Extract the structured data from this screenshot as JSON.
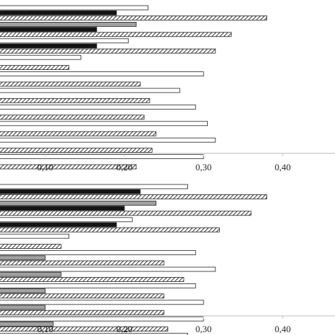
{
  "chart_data": [
    {
      "type": "bar",
      "orientation": "horizontal",
      "xlim": [
        0,
        0.45
      ],
      "xticks": [
        "0,10",
        "0,20",
        "0,30",
        "0,40"
      ],
      "xtick_values": [
        0.1,
        0.2,
        0.3,
        0.4
      ],
      "grid": false,
      "groups": [
        {
          "bars": [
            {
              "fill": "white",
              "value": 0.23
            },
            {
              "fill": "black",
              "value": 0.19
            },
            {
              "fill": "hatch",
              "value": 0.38
            }
          ]
        },
        {
          "bars": [
            {
              "fill": "gray",
              "value": 0.215
            },
            {
              "fill": "black",
              "value": 0.165
            },
            {
              "fill": "hatch",
              "value": 0.335
            }
          ]
        },
        {
          "bars": [
            {
              "fill": "white",
              "value": 0.205
            },
            {
              "fill": "black",
              "value": 0.165
            },
            {
              "fill": "hatch",
              "value": 0.315
            }
          ]
        },
        {
          "bars": [
            {
              "fill": "white",
              "value": 0.145
            },
            {
              "fill": "gray",
              "value": 0.0
            },
            {
              "fill": "hatch",
              "value": 0.13
            }
          ]
        },
        {
          "bars": [
            {
              "fill": "white",
              "value": 0.3
            },
            {
              "fill": "gray",
              "value": 0.0
            },
            {
              "fill": "hatch",
              "value": 0.22
            }
          ]
        },
        {
          "bars": [
            {
              "fill": "white",
              "value": 0.27
            },
            {
              "fill": "gray",
              "value": 0.003
            },
            {
              "fill": "hatch",
              "value": 0.232
            }
          ]
        },
        {
          "bars": [
            {
              "fill": "white",
              "value": 0.29
            },
            {
              "fill": "gray",
              "value": 0.005
            },
            {
              "fill": "hatch",
              "value": 0.225
            }
          ]
        },
        {
          "bars": [
            {
              "fill": "white",
              "value": 0.305
            },
            {
              "fill": "gray",
              "value": 0.0
            },
            {
              "fill": "hatch",
              "value": 0.24
            }
          ]
        },
        {
          "bars": [
            {
              "fill": "white",
              "value": 0.315
            },
            {
              "fill": "gray",
              "value": 0.0
            },
            {
              "fill": "hatch",
              "value": 0.235
            }
          ]
        },
        {
          "bars": [
            {
              "fill": "white",
              "value": 0.3
            },
            {
              "fill": "gray",
              "value": 0.006
            },
            {
              "fill": "hatch",
              "value": 0.215
            }
          ]
        }
      ]
    },
    {
      "type": "bar",
      "orientation": "horizontal",
      "xlim": [
        0,
        0.45
      ],
      "xticks": [
        "0,10",
        "0,20",
        "0,30",
        "0,40"
      ],
      "xtick_values": [
        0.1,
        0.2,
        0.3,
        0.4
      ],
      "grid": false,
      "groups": [
        {
          "bars": [
            {
              "fill": "white",
              "value": 0.28
            },
            {
              "fill": "black",
              "value": 0.22
            },
            {
              "fill": "hatch",
              "value": 0.38
            }
          ]
        },
        {
          "bars": [
            {
              "fill": "gray",
              "value": 0.24
            },
            {
              "fill": "black",
              "value": 0.2
            },
            {
              "fill": "hatch",
              "value": 0.36
            }
          ]
        },
        {
          "bars": [
            {
              "fill": "white",
              "value": 0.21
            },
            {
              "fill": "black",
              "value": 0.19
            },
            {
              "fill": "hatch",
              "value": 0.32
            }
          ]
        },
        {
          "bars": [
            {
              "fill": "white",
              "value": 0.13
            },
            {
              "fill": "gray",
              "value": 0.01
            },
            {
              "fill": "hatch",
              "value": 0.12
            }
          ]
        },
        {
          "bars": [
            {
              "fill": "white",
              "value": 0.29
            },
            {
              "fill": "gray",
              "value": 0.1
            },
            {
              "fill": "hatch",
              "value": 0.25
            }
          ]
        },
        {
          "bars": [
            {
              "fill": "white",
              "value": 0.315
            },
            {
              "fill": "gray",
              "value": 0.12
            },
            {
              "fill": "hatch",
              "value": 0.275
            }
          ]
        },
        {
          "bars": [
            {
              "fill": "white",
              "value": 0.29
            },
            {
              "fill": "gray",
              "value": 0.1
            },
            {
              "fill": "hatch",
              "value": 0.25
            }
          ]
        },
        {
          "bars": [
            {
              "fill": "white",
              "value": 0.3
            },
            {
              "fill": "gray",
              "value": 0.1
            },
            {
              "fill": "hatch",
              "value": 0.25
            }
          ]
        },
        {
          "bars": [
            {
              "fill": "white",
              "value": 0.3
            },
            {
              "fill": "gray",
              "value": 0.11
            },
            {
              "fill": "hatch",
              "value": 0.255
            }
          ]
        },
        {
          "bars": [
            {
              "fill": "white",
              "value": 0.28
            },
            {
              "fill": "gray",
              "value": 0.1
            },
            {
              "fill": "hatch",
              "value": 0.225
            }
          ]
        }
      ]
    }
  ],
  "colors": {
    "white": "#ffffff",
    "gray": "#a0a0a0",
    "black": "#141414",
    "outline": "#222222",
    "hatch_bg": "#ffffff",
    "hatch_line": "#333333",
    "axis": "#bbbbbb"
  }
}
